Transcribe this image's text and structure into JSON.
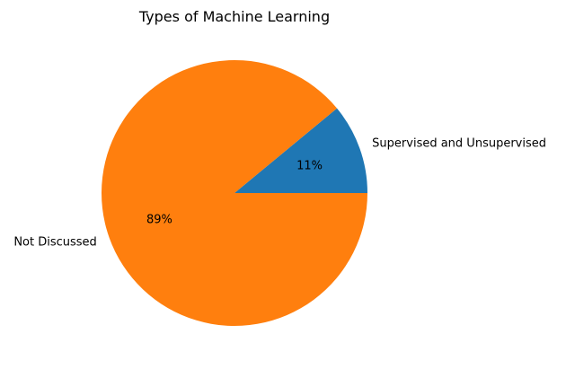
{
  "chart_data": {
    "type": "pie",
    "title": "Types of Machine Learning",
    "slices": [
      {
        "label": "Supervised and Unsupervised",
        "value": 11,
        "pct_label": "11%",
        "color": "#1f77b4"
      },
      {
        "label": "Not Discussed",
        "value": 89,
        "pct_label": "89%",
        "color": "#ff7f0e"
      }
    ],
    "start_angle_deg": 0,
    "direction": "counterclockwise",
    "legend": "none"
  }
}
